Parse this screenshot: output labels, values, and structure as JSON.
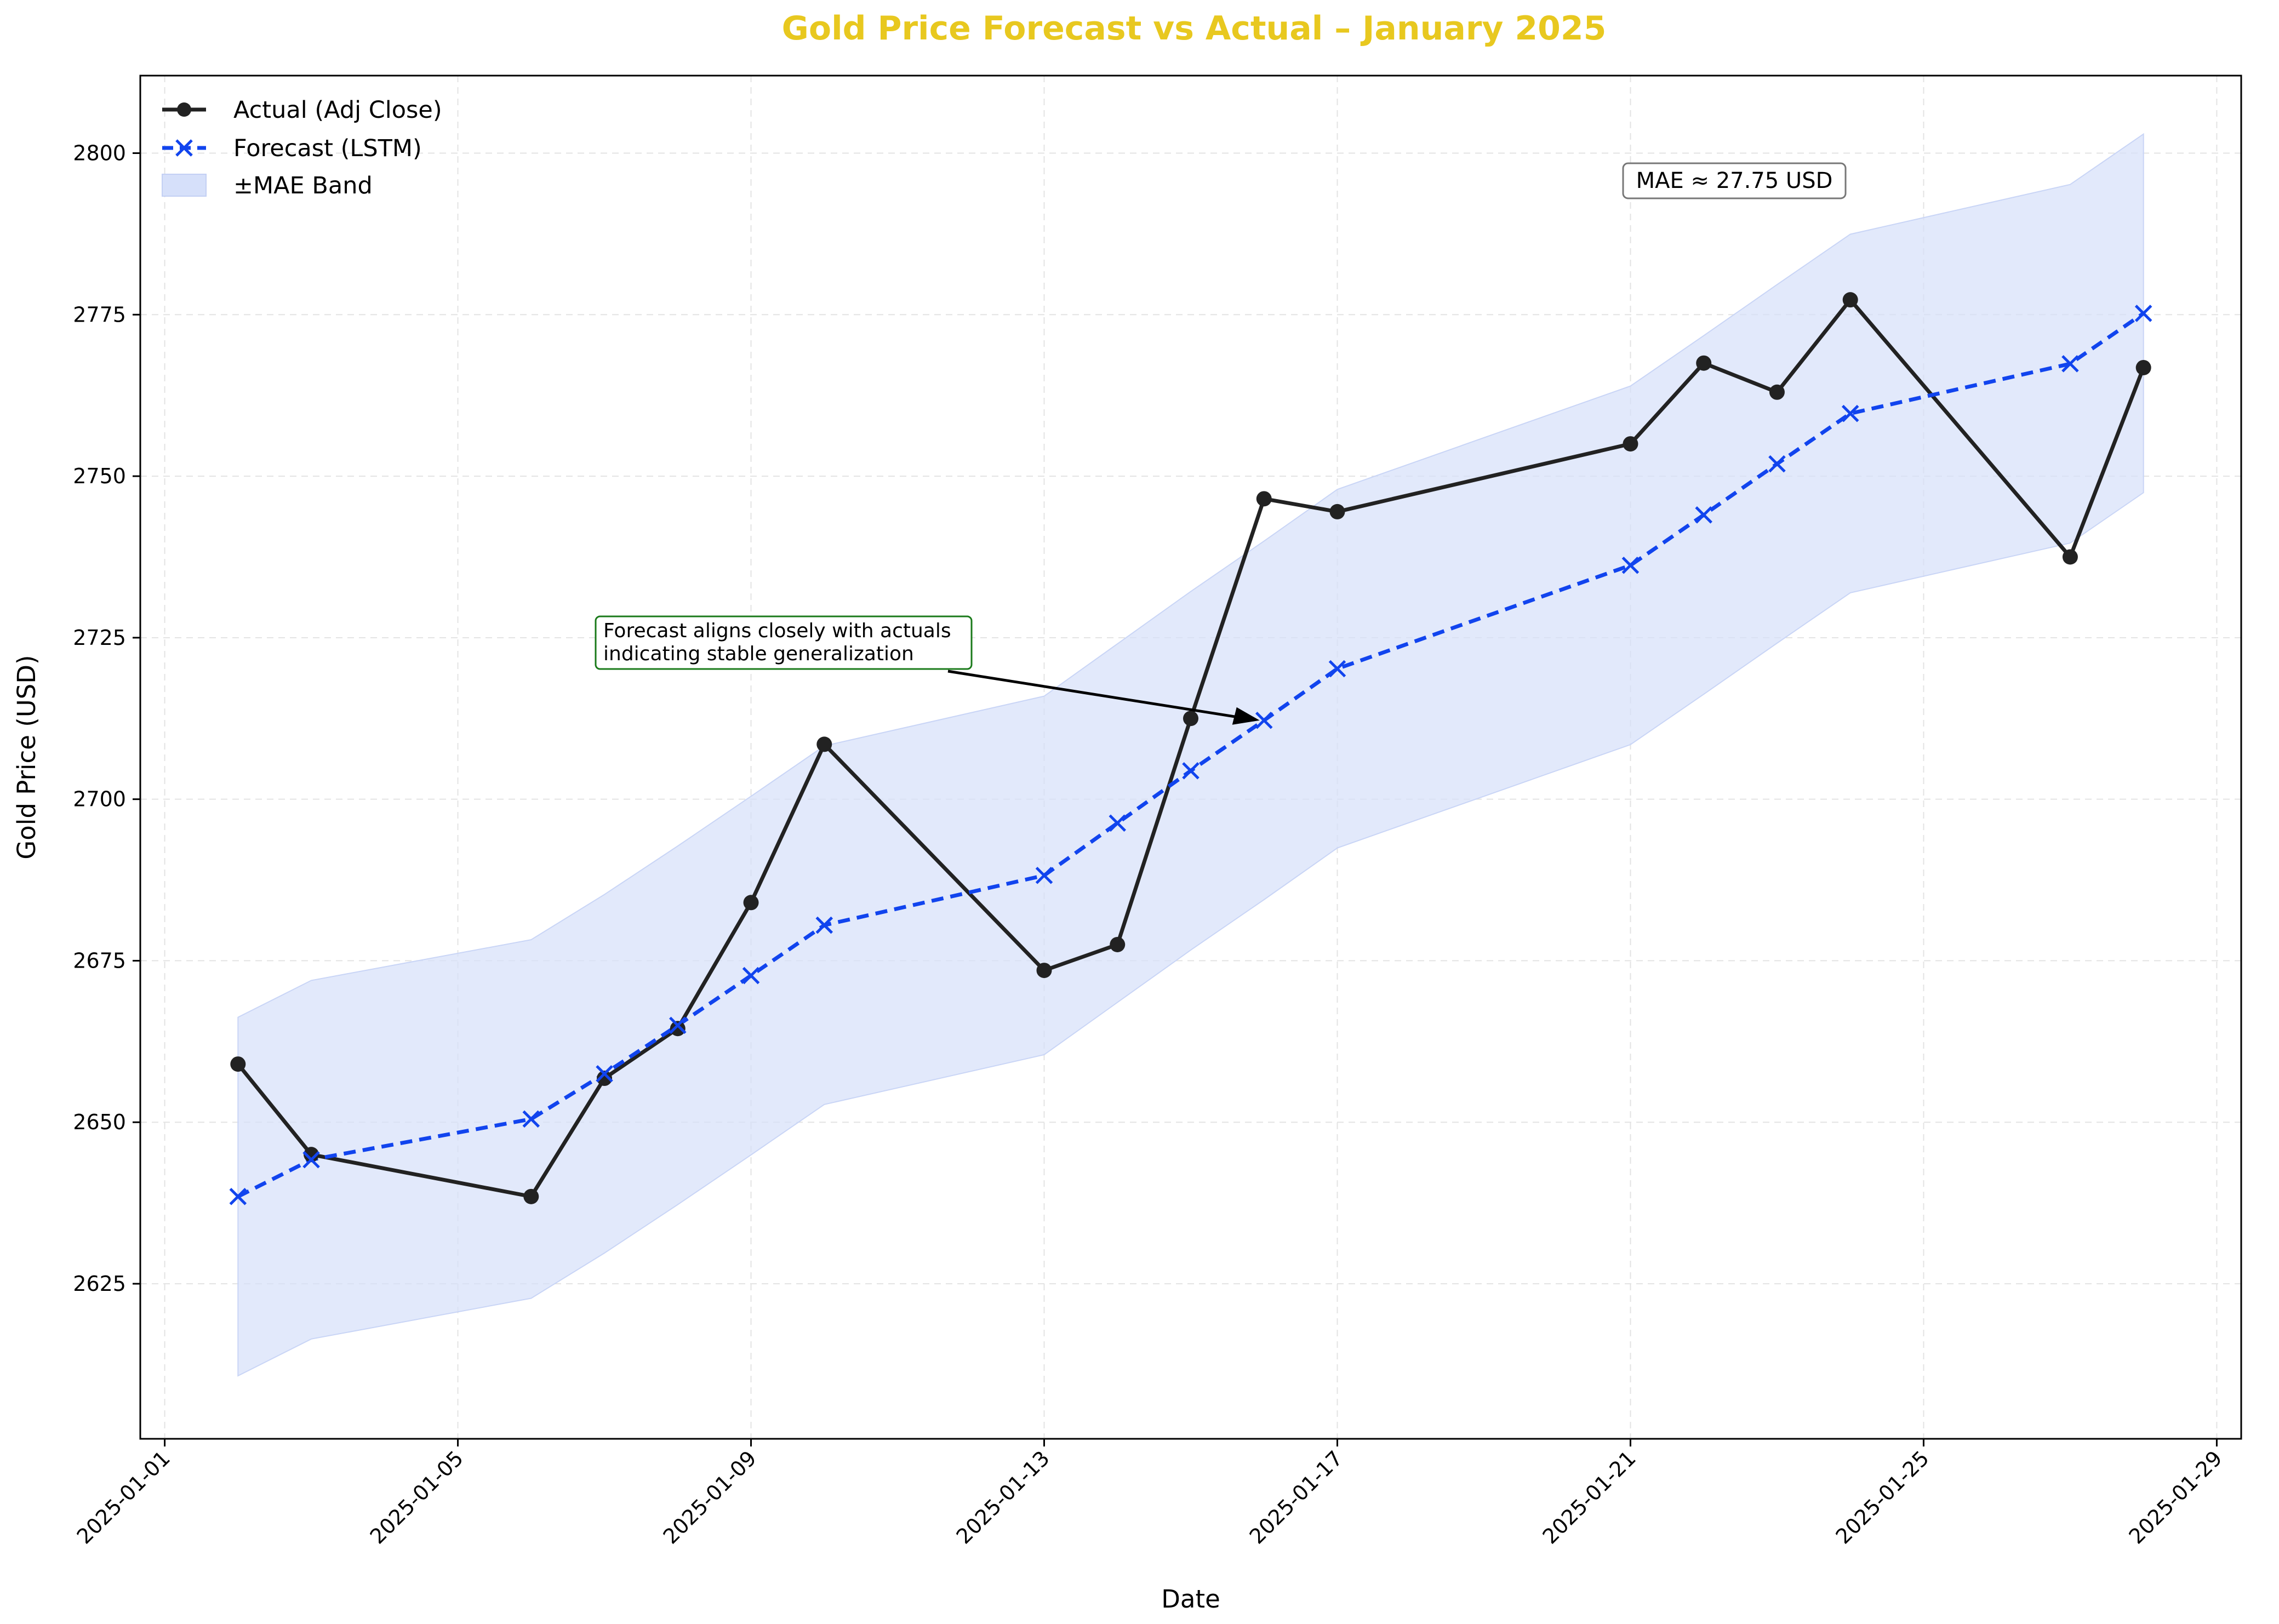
{
  "chart_data": {
    "type": "line",
    "title": "Gold Price Forecast vs Actual – January 2025",
    "title_color": "#e8c81f",
    "xlabel": "Date",
    "ylabel": "Gold Price (USD)",
    "x_ticks": [
      "2025-01-01",
      "2025-01-05",
      "2025-01-09",
      "2025-01-13",
      "2025-01-17",
      "2025-01-21",
      "2025-01-25",
      "2025-01-29"
    ],
    "y_ticks": [
      2625,
      2650,
      2675,
      2700,
      2725,
      2750,
      2775,
      2800
    ],
    "xlim": [
      "2024-12-31T16:00",
      "2025-01-29T08:00"
    ],
    "ylim": [
      2601,
      2812
    ],
    "grid": true,
    "legend_position": "upper-left",
    "dates": [
      "2025-01-02",
      "2025-01-03",
      "2025-01-06",
      "2025-01-07",
      "2025-01-08",
      "2025-01-09",
      "2025-01-10",
      "2025-01-13",
      "2025-01-14",
      "2025-01-15",
      "2025-01-16",
      "2025-01-17",
      "2025-01-21",
      "2025-01-22",
      "2025-01-23",
      "2025-01-24",
      "2025-01-27",
      "2025-01-28"
    ],
    "series": [
      {
        "name": "Actual (Adj Close)",
        "color": "#222222",
        "style": "solid",
        "marker": "circle",
        "values": [
          2659.0,
          2645.0,
          2638.5,
          2656.8,
          2664.5,
          2684.0,
          2708.5,
          2673.5,
          2677.5,
          2712.5,
          2746.5,
          2744.5,
          2755.0,
          2767.5,
          2763.0,
          2777.3,
          2737.5,
          2766.8
        ]
      },
      {
        "name": "Forecast (LSTM)",
        "color": "#1144ee",
        "style": "dashed",
        "marker": "x",
        "values": [
          2638.5,
          2644.2,
          2650.5,
          2657.5,
          2665.0,
          2672.7,
          2680.5,
          2688.2,
          2696.3,
          2704.4,
          2712.2,
          2720.2,
          2736.2,
          2744.0,
          2751.9,
          2759.7,
          2767.4,
          2775.2
        ]
      }
    ],
    "band": {
      "name": "±MAE Band",
      "color": "#d6e0fa",
      "mae": 27.75
    },
    "annotations": {
      "mae_box": "MAE ≈ 27.75 USD",
      "arrow_text_line1": "Forecast aligns closely with actuals",
      "arrow_text_line2": "indicating stable generalization",
      "arrow_target_date": "2025-01-16",
      "arrow_target_value": 2712.2
    }
  }
}
